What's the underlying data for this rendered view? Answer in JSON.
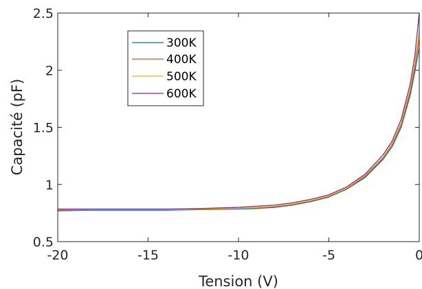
{
  "chart_data": {
    "type": "line",
    "title": "",
    "xlabel": "Tension (V)",
    "ylabel": "Capacité (pF)",
    "xlim": [
      -20,
      0
    ],
    "ylim": [
      0.5,
      2.5
    ],
    "xticks": [
      -20,
      -15,
      -10,
      -5,
      0
    ],
    "xtick_labels": [
      "-20",
      "-15",
      "-10",
      "-5",
      "0"
    ],
    "yticks": [
      0.5,
      1,
      1.5,
      2,
      2.5
    ],
    "ytick_labels": [
      "0.5",
      "1",
      "1.5",
      "2",
      "2.5"
    ],
    "grid": false,
    "legend_position": "top-left",
    "x": [
      -20,
      -18,
      -16,
      -14,
      -12,
      -10,
      -9,
      -8,
      -7,
      -6,
      -5,
      -4,
      -3,
      -2,
      -1.5,
      -1,
      -0.5,
      -0.25,
      0
    ],
    "series": [
      {
        "name": "300K",
        "color": "#0072BD",
        "values": [
          0.77,
          0.775,
          0.775,
          0.775,
          0.78,
          0.785,
          0.79,
          0.8,
          0.82,
          0.85,
          0.89,
          0.96,
          1.06,
          1.22,
          1.33,
          1.5,
          1.78,
          1.98,
          2.2
        ]
      },
      {
        "name": "400K",
        "color": "#D95319",
        "values": [
          0.775,
          0.78,
          0.78,
          0.78,
          0.785,
          0.79,
          0.795,
          0.805,
          0.825,
          0.855,
          0.895,
          0.965,
          1.07,
          1.23,
          1.35,
          1.52,
          1.81,
          2.02,
          2.28
        ]
      },
      {
        "name": "500K",
        "color": "#EDB120",
        "values": [
          0.78,
          0.78,
          0.78,
          0.78,
          0.785,
          0.79,
          0.8,
          0.81,
          0.83,
          0.86,
          0.9,
          0.97,
          1.08,
          1.24,
          1.36,
          1.54,
          1.84,
          2.06,
          2.35
        ]
      },
      {
        "name": "600K",
        "color": "#7E2F8E",
        "values": [
          0.785,
          0.785,
          0.785,
          0.785,
          0.79,
          0.8,
          0.81,
          0.82,
          0.84,
          0.87,
          0.91,
          0.98,
          1.09,
          1.26,
          1.38,
          1.57,
          1.88,
          2.12,
          2.5
        ]
      }
    ]
  }
}
